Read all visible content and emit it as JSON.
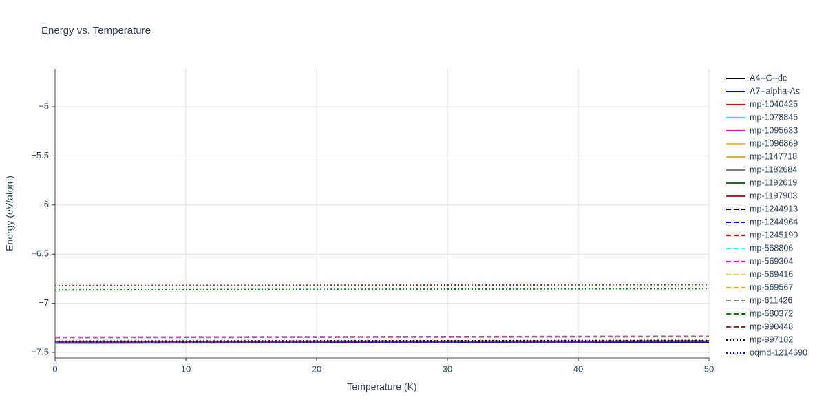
{
  "chart_data": {
    "type": "line",
    "title": "Energy vs. Temperature",
    "x_label": "Temperature (K)",
    "y_label": "Energy (eV/atom)",
    "x": [
      0,
      50
    ],
    "xlim": [
      0,
      50
    ],
    "xticks": [
      0,
      10,
      20,
      30,
      40,
      50
    ],
    "ylim": [
      -7.556,
      -4.615
    ],
    "yticks": [
      {
        "value": -7.5,
        "label": "−7.5"
      },
      {
        "value": -7,
        "label": "−7"
      },
      {
        "value": -6.5,
        "label": "−6.5"
      },
      {
        "value": -6,
        "label": "−6"
      },
      {
        "value": -5.5,
        "label": "−5.5"
      },
      {
        "value": -5,
        "label": "−5"
      }
    ],
    "grid": true,
    "legend": "right",
    "series": [
      {
        "name": "A4--C--dc",
        "color": "#000000",
        "dash": "solid",
        "values": [
          -7.4,
          -7.4
        ]
      },
      {
        "name": "A7--alpha-As",
        "color": "#0000ff",
        "dash": "solid",
        "values": [
          -7.405,
          -7.395
        ]
      },
      {
        "name": "mp-1040425",
        "color": "#ff0000",
        "dash": "solid",
        "values": [
          -7.395,
          -7.387
        ]
      },
      {
        "name": "mp-1078845",
        "color": "#00ffff",
        "dash": "solid",
        "values": [
          -7.395,
          -7.387
        ]
      },
      {
        "name": "mp-1095633",
        "color": "#ff00ff",
        "dash": "solid",
        "values": [
          -7.395,
          -7.387
        ]
      },
      {
        "name": "mp-1096869",
        "color": "#f0c020",
        "dash": "solid",
        "values": [
          -7.395,
          -7.387
        ]
      },
      {
        "name": "mp-1147718",
        "color": "#ffa500",
        "dash": "solid",
        "values": [
          -7.395,
          -7.387
        ]
      },
      {
        "name": "mp-1182684",
        "color": "#808080",
        "dash": "solid",
        "values": [
          -7.395,
          -7.387
        ]
      },
      {
        "name": "mp-1192619",
        "color": "#008000",
        "dash": "solid",
        "values": [
          -7.395,
          -7.387
        ]
      },
      {
        "name": "mp-1197903",
        "color": "#a52a2a",
        "dash": "solid",
        "values": [
          -7.395,
          -7.387
        ]
      },
      {
        "name": "mp-1244913",
        "color": "#000000",
        "dash": "dash",
        "values": [
          -7.39,
          -7.383
        ]
      },
      {
        "name": "mp-1244964",
        "color": "#0000ff",
        "dash": "dash",
        "values": [
          -7.39,
          -7.383
        ]
      },
      {
        "name": "mp-1245190",
        "color": "#ff0000",
        "dash": "dash",
        "values": [
          -7.39,
          -7.383
        ]
      },
      {
        "name": "mp-568806",
        "color": "#00ffff",
        "dash": "dash",
        "values": [
          -7.39,
          -7.383
        ]
      },
      {
        "name": "mp-569304",
        "color": "#ff00ff",
        "dash": "dash",
        "values": [
          -7.345,
          -7.335
        ]
      },
      {
        "name": "mp-569416",
        "color": "#f0c020",
        "dash": "dash",
        "values": [
          -7.39,
          -7.383
        ]
      },
      {
        "name": "mp-569567",
        "color": "#ffa500",
        "dash": "dash",
        "values": [
          -7.39,
          -7.383
        ]
      },
      {
        "name": "mp-611426",
        "color": "#808080",
        "dash": "dash",
        "values": [
          -7.35,
          -7.34
        ]
      },
      {
        "name": "mp-680372",
        "color": "#008000",
        "dash": "dash",
        "values": [
          -7.39,
          -7.383
        ]
      },
      {
        "name": "mp-990448",
        "color": "#a52a2a",
        "dash": "dash",
        "values": [
          -7.39,
          -7.383
        ]
      },
      {
        "name": "mp-997182",
        "color": "#000000",
        "dash": "dot",
        "values": [
          -7.385,
          -7.378
        ]
      },
      {
        "name": "oqmd-1214690",
        "color": "#0000ff",
        "dash": "dot",
        "values": [
          -7.4,
          -7.39
        ]
      },
      {
        "color": "#008000",
        "dash": "dot",
        "values": [
          -6.865,
          -6.85
        ]
      },
      {
        "color": "#a52a2a",
        "dash": "dot",
        "values": [
          -6.82,
          -6.81
        ]
      }
    ]
  }
}
